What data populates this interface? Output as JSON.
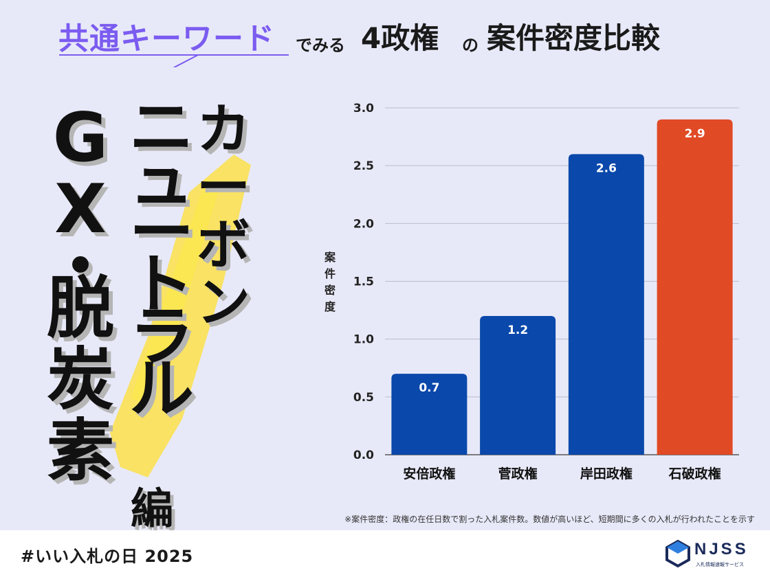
{
  "title": {
    "keyword": "共通キーワード",
    "mid": "でみる",
    "big1": "4政権",
    "no": "の",
    "big2": "案件密度比較"
  },
  "keywords": {
    "col1": [
      "G",
      "X",
      "・",
      "脱",
      "炭",
      "素"
    ],
    "col2": [
      "ニ",
      "ュ",
      "ー",
      "ト",
      "ラ",
      "ル"
    ],
    "col3": [
      "カ",
      "ー",
      "ボ",
      "ン"
    ],
    "suffix": "編"
  },
  "chart_data": {
    "type": "bar",
    "categories": [
      "安倍政権",
      "菅政権",
      "岸田政権",
      "石破政権"
    ],
    "values": [
      0.7,
      1.2,
      2.6,
      2.9
    ],
    "value_labels": [
      "0.7",
      "1.2",
      "2.6",
      "2.9"
    ],
    "ylabel": "案件密度",
    "ylim": [
      0,
      3.0
    ],
    "yticks": [
      0.0,
      0.5,
      1.0,
      1.5,
      2.0,
      2.5,
      3.0
    ],
    "ytick_labels": [
      "0.0",
      "0.5",
      "1.0",
      "1.5",
      "2.0",
      "2.5",
      "3.0"
    ],
    "grid": true,
    "colors": [
      "#0a48ab",
      "#0a48ab",
      "#0a48ab",
      "#e04a25"
    ]
  },
  "note": "※案件密度：政権の在任日数で割った入札案件数。数値が高いほど、短期間に多くの入札が行われたことを示す",
  "footer": {
    "hashtag": "#いい入札の日 2025",
    "logo_text": "NJSS",
    "logo_sub": "入札情報速報サービス"
  },
  "colors": {
    "background": "#e8e9f8",
    "accent": "#7b5cf0",
    "highlight": "#fbe04a"
  }
}
